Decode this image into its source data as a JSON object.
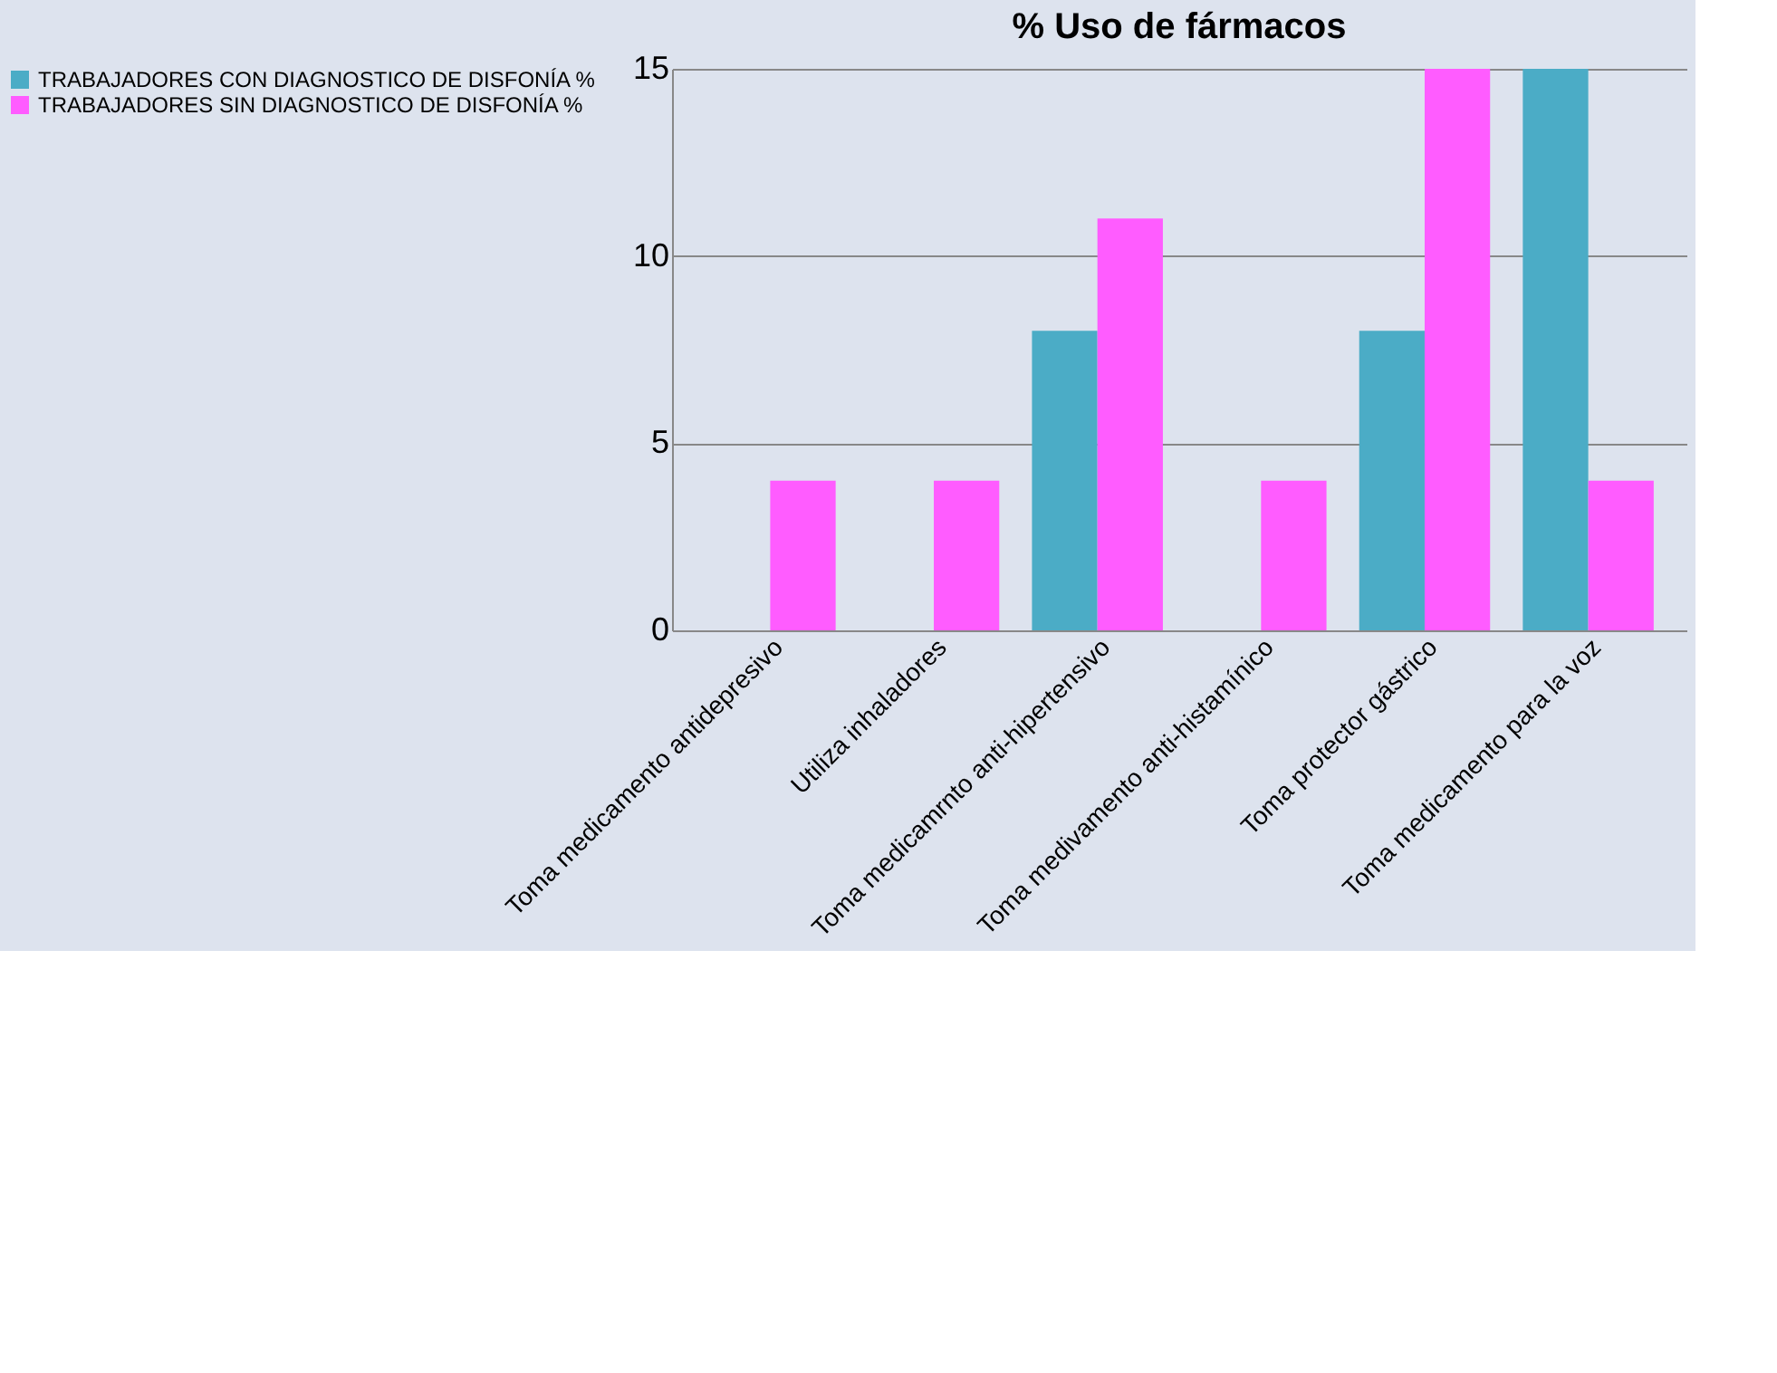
{
  "chart_data": {
    "type": "bar",
    "title": "% Uso de fármacos",
    "categories": [
      "Toma medicamento antidepresivo",
      "Utiliza inhaladores",
      "Toma medicamrnto anti-hipertensivo",
      "Toma medivamento anti-histamínico",
      "Toma protector gástrico",
      "Toma medicamento para la voz"
    ],
    "series": [
      {
        "name": "TRABAJADORES CON DIAGNOSTICO DE DISFONÍA %",
        "color": "#4bacc6",
        "values": [
          0,
          0,
          8,
          0,
          8,
          15
        ]
      },
      {
        "name": "TRABAJADORES SIN DIAGNOSTICO DE DISFONÍA %",
        "color": "#ff5cff",
        "values": [
          4,
          4,
          11,
          4,
          15,
          4
        ]
      }
    ],
    "ylim": [
      0,
      15
    ],
    "yticks": [
      0,
      5,
      10,
      15
    ],
    "grid": "y",
    "legend": "left"
  }
}
